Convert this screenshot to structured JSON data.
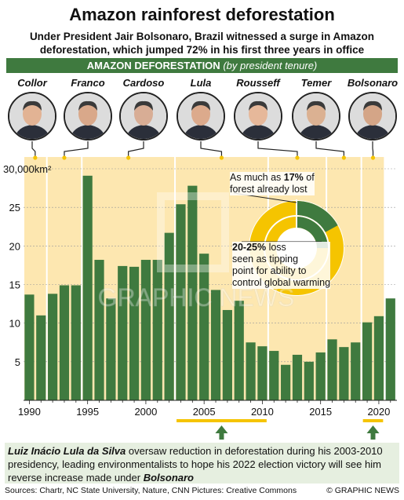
{
  "header": {
    "title": "Amazon rainforest deforestation",
    "subtitle_line1": "Under President Jair Bolsonaro, Brazil witnessed a surge in Amazon",
    "subtitle_line2": "deforestation, which jumped 72% in his first three years in office"
  },
  "section": {
    "label": "AMAZON DEFORESTATION",
    "sublabel": "(by president tenure)"
  },
  "presidents": [
    {
      "name": "Collor",
      "start": 1990,
      "end": 1992
    },
    {
      "name": "Franco",
      "start": 1992,
      "end": 1995
    },
    {
      "name": "Cardoso",
      "start": 1995,
      "end": 2003
    },
    {
      "name": "Lula",
      "start": 2003,
      "end": 2011
    },
    {
      "name": "Rousseff",
      "start": 2011,
      "end": 2016
    },
    {
      "name": "Temer",
      "start": 2016,
      "end": 2019
    },
    {
      "name": "Bolsonaro",
      "start": 2019,
      "end": 2021
    }
  ],
  "chart_data": {
    "type": "bar",
    "x": [
      1990,
      1991,
      1992,
      1993,
      1994,
      1995,
      1996,
      1997,
      1998,
      1999,
      2000,
      2001,
      2002,
      2003,
      2004,
      2005,
      2006,
      2007,
      2008,
      2009,
      2010,
      2011,
      2012,
      2013,
      2014,
      2015,
      2016,
      2017,
      2018,
      2019,
      2020,
      2021
    ],
    "values": [
      13.7,
      11.0,
      13.8,
      14.9,
      14.9,
      29.1,
      18.2,
      13.2,
      17.4,
      17.3,
      18.2,
      18.2,
      21.7,
      25.4,
      27.8,
      19.0,
      14.3,
      11.7,
      12.9,
      7.5,
      7.0,
      6.4,
      4.6,
      5.9,
      5.0,
      6.2,
      7.9,
      6.9,
      7.5,
      10.1,
      10.9,
      13.2
    ],
    "unit": "30,000km²",
    "yticks": [
      "5",
      "10",
      "15",
      "20",
      "25"
    ],
    "ylim": [
      0,
      30
    ],
    "xticks": [
      "1990",
      "1995",
      "2000",
      "2005",
      "2010",
      "2015",
      "2020"
    ],
    "grid": true,
    "colors": {
      "bar": "#3f7a3f",
      "band": "#fde7b0",
      "accent": "#f5c400"
    }
  },
  "donut": {
    "callout1_pre": "As much as ",
    "callout1_bold": "17%",
    "callout1_post": " of",
    "callout1_line2": "forest already lost",
    "callout2_bold": "20-25%",
    "callout2_post": " loss",
    "callout2_line2": "seen as tipping",
    "callout2_line3": "point for ability to",
    "callout2_line4": "control global warming"
  },
  "note": {
    "bold1": "Luiz Inácio Lula da Silva",
    "text1": " oversaw reduction in deforestation during his 2003-2010 presidency, leading environmentalists to hope his 2022 election victory will see him reverse increase made under ",
    "bold2": "Bolsonaro"
  },
  "credits": {
    "left": "Sources: Chartr, NC State University, Nature, CNN   Pictures: Creative Commons",
    "right": "© GRAPHIC NEWS"
  }
}
